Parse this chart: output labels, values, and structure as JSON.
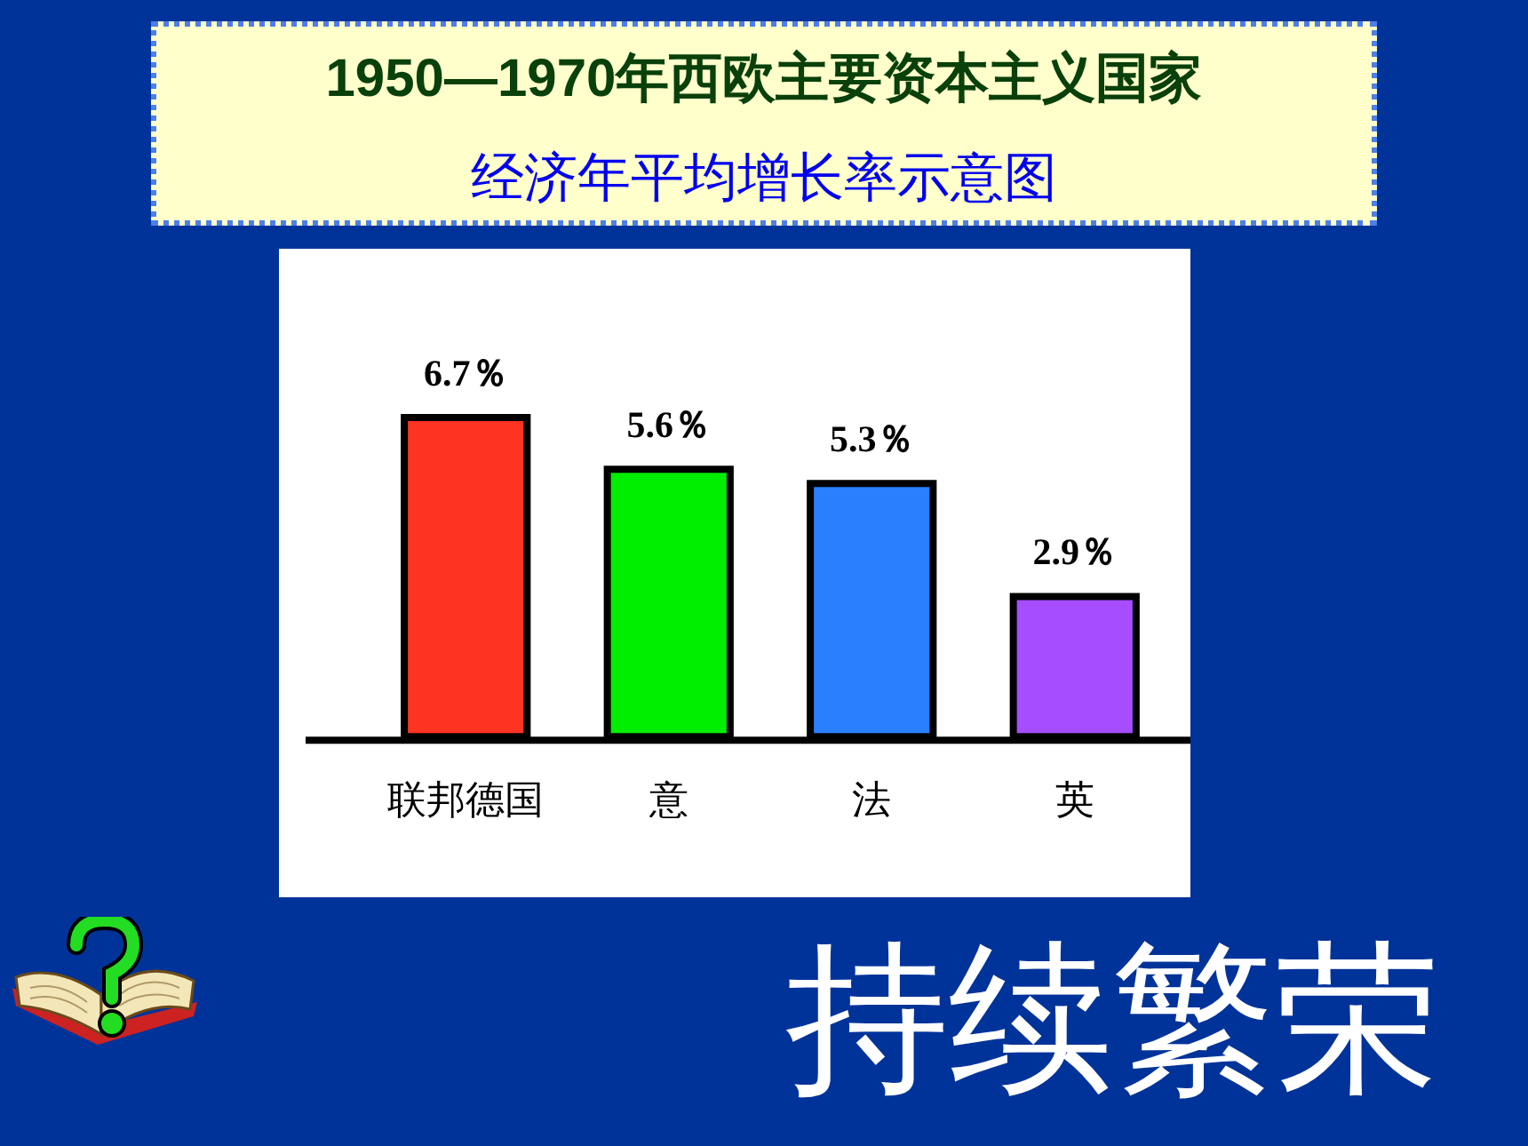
{
  "chart_data": {
    "type": "bar",
    "title": "1950—1970年西欧主要资本主义国家",
    "subtitle": "经济年平均增长率示意图",
    "categories": [
      "联邦德国",
      "意",
      "法",
      "英"
    ],
    "values": [
      6.7,
      5.6,
      5.3,
      2.9
    ],
    "colors": [
      "#ff3322",
      "#00ee00",
      "#2a7fff",
      "#a64dff"
    ],
    "value_labels": [
      "6.7％",
      "5.6％",
      "5.3％",
      "2.9％"
    ],
    "tick_labels": "x",
    "annotations": [
      "持续繁荣"
    ]
  }
}
